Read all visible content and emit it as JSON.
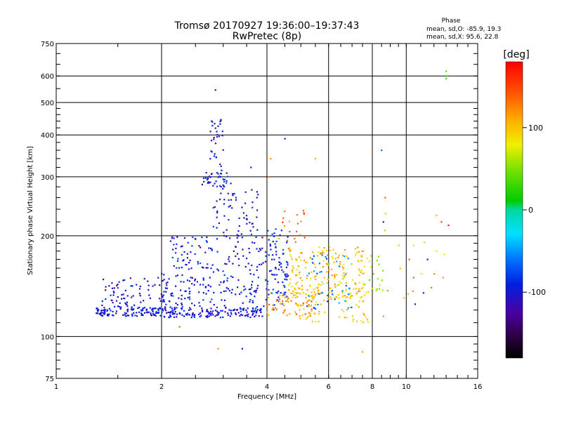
{
  "chart_data": {
    "type": "scatter",
    "title": "Tromsø 20170927 19:36:00–19:37:43",
    "subtitle": "RwPretec (8p)",
    "stats": {
      "heading": "Phase",
      "line_o": "mean, sd,O: -85.9, 19.3",
      "line_x": "mean, sd,X:  95.6, 22.8"
    },
    "xlabel": "Frequency [MHz]",
    "ylabel": "Stationary phase Virtual Height [km]",
    "x_scale": "log",
    "y_scale": "log",
    "xlim": [
      1,
      16
    ],
    "ylim": [
      75,
      750
    ],
    "x_ticks": [
      {
        "value": 1,
        "label": "1"
      },
      {
        "value": 2,
        "label": "2"
      },
      {
        "value": 4,
        "label": "4"
      },
      {
        "value": 6,
        "label": "6"
      },
      {
        "value": 8,
        "label": "8"
      },
      {
        "value": 10,
        "label": "10"
      },
      {
        "value": 16,
        "label": "16"
      }
    ],
    "x_gridlines": [
      2,
      4,
      6,
      8,
      10
    ],
    "y_ticks": [
      {
        "value": 75,
        "label": "75"
      },
      {
        "value": 100,
        "label": "100"
      },
      {
        "value": 200,
        "label": "200"
      },
      {
        "value": 300,
        "label": "300"
      },
      {
        "value": 400,
        "label": "400"
      },
      {
        "value": 500,
        "label": "500"
      },
      {
        "value": 600,
        "label": "600"
      },
      {
        "value": 750,
        "label": "750"
      }
    ],
    "y_gridlines": [
      100,
      200,
      300,
      400,
      500,
      600
    ],
    "grid": true,
    "colorbar": {
      "label": "[deg]",
      "range": [
        -180,
        180
      ],
      "ticks": [
        {
          "value": 100,
          "label": "100"
        },
        {
          "value": 0,
          "label": "0"
        },
        {
          "value": -100,
          "label": "-100"
        }
      ]
    },
    "clusters": [
      {
        "x_range": [
          1.3,
          2.0
        ],
        "y_range": [
          115,
          122
        ],
        "phase": -100,
        "count": 110
      },
      {
        "x_range": [
          1.35,
          2.1
        ],
        "y_range": [
          122,
          150
        ],
        "phase": -105,
        "count": 80
      },
      {
        "x_range": [
          2.0,
          3.9
        ],
        "y_range": [
          114,
          122
        ],
        "phase": -100,
        "count": 160
      },
      {
        "x_range": [
          2.0,
          3.8
        ],
        "y_range": [
          122,
          160
        ],
        "phase": -95,
        "count": 140
      },
      {
        "x_range": [
          2.1,
          2.9
        ],
        "y_range": [
          160,
          200
        ],
        "phase": -95,
        "count": 60
      },
      {
        "x_range": [
          2.6,
          3.2
        ],
        "y_range": [
          280,
          310
        ],
        "phase": -95,
        "count": 40
      },
      {
        "x_range": [
          2.75,
          3.0
        ],
        "y_range": [
          300,
          450
        ],
        "phase": -105,
        "count": 30
      },
      {
        "x_range": [
          2.8,
          3.8
        ],
        "y_range": [
          200,
          280
        ],
        "phase": -100,
        "count": 60
      },
      {
        "x_range": [
          3.0,
          3.9
        ],
        "y_range": [
          160,
          200
        ],
        "phase": -105,
        "count": 40
      },
      {
        "x_range": [
          3.9,
          4.6
        ],
        "y_range": [
          120,
          210
        ],
        "phase": -95,
        "count": 90
      },
      {
        "x_range": [
          4.0,
          5.5
        ],
        "y_range": [
          115,
          135
        ],
        "phase": 120,
        "count": 70
      },
      {
        "x_range": [
          4.6,
          7.6
        ],
        "y_range": [
          130,
          185
        ],
        "phase": 100,
        "count": 200
      },
      {
        "x_range": [
          4.8,
          7.8
        ],
        "y_range": [
          110,
          140
        ],
        "phase": 95,
        "count": 70
      },
      {
        "x_range": [
          4.3,
          5.2
        ],
        "y_range": [
          190,
          240
        ],
        "phase": 130,
        "count": 20
      },
      {
        "x_range": [
          5.2,
          7.0
        ],
        "y_range": [
          120,
          175
        ],
        "phase": -60,
        "count": 40
      },
      {
        "x_range": [
          7.6,
          8.6
        ],
        "y_range": [
          135,
          175
        ],
        "phase": 60,
        "count": 20
      },
      {
        "x_range": [
          8.2,
          13.0
        ],
        "y_range": [
          130,
          240
        ],
        "phase": 100,
        "count": 15
      }
    ],
    "points": [
      {
        "x": 2.85,
        "y": 545,
        "phase": -95
      },
      {
        "x": 2.78,
        "y": 440,
        "phase": -100
      },
      {
        "x": 2.9,
        "y": 425,
        "phase": -100
      },
      {
        "x": 2.88,
        "y": 395,
        "phase": -95
      },
      {
        "x": 4.5,
        "y": 390,
        "phase": -100
      },
      {
        "x": 3.6,
        "y": 320,
        "phase": -100
      },
      {
        "x": 8.5,
        "y": 360,
        "phase": -60
      },
      {
        "x": 13.0,
        "y": 620,
        "phase": 40
      },
      {
        "x": 13.1,
        "y": 600,
        "phase": 30
      },
      {
        "x": 13.0,
        "y": 590,
        "phase": 30
      },
      {
        "x": 2.9,
        "y": 92,
        "phase": 120
      },
      {
        "x": 3.4,
        "y": 92,
        "phase": -120
      },
      {
        "x": 7.5,
        "y": 90,
        "phase": 110
      },
      {
        "x": 2.25,
        "y": 107,
        "phase": 140
      },
      {
        "x": 4.1,
        "y": 340,
        "phase": 120
      },
      {
        "x": 4.05,
        "y": 300,
        "phase": 130
      },
      {
        "x": 5.5,
        "y": 340,
        "phase": 110
      },
      {
        "x": 8.7,
        "y": 260,
        "phase": 140
      },
      {
        "x": 8.6,
        "y": 220,
        "phase": -100
      },
      {
        "x": 12.2,
        "y": 230,
        "phase": 100
      },
      {
        "x": 12.6,
        "y": 220,
        "phase": 150
      },
      {
        "x": 13.2,
        "y": 215,
        "phase": 170
      },
      {
        "x": 10.2,
        "y": 170,
        "phase": 140
      },
      {
        "x": 11.5,
        "y": 170,
        "phase": -100
      },
      {
        "x": 10.5,
        "y": 150,
        "phase": 140
      },
      {
        "x": 11.8,
        "y": 140,
        "phase": 130
      },
      {
        "x": 11.2,
        "y": 135,
        "phase": -90
      },
      {
        "x": 10.6,
        "y": 125,
        "phase": -100
      },
      {
        "x": 8.6,
        "y": 115,
        "phase": 120
      }
    ]
  }
}
